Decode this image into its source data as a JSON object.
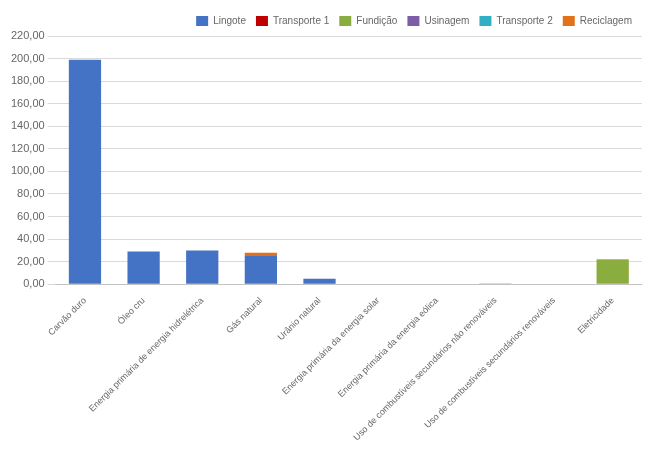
{
  "chart_data": {
    "type": "bar",
    "stacked": true,
    "categories": [
      "Carvão duro",
      "Óleo cru",
      "Energia primária de energia hidrelétrica",
      "Gás natural",
      "Urânio natural",
      "Energia primária da energia solar",
      "Energia primária da energia eólica",
      "Uso de combustíveis secundários não renováveis",
      "Uso de combustíveis secundários renováveis",
      "Eletricidade"
    ],
    "series": [
      {
        "name": "Lingote",
        "color": "#4472C4",
        "values": [
          199.0,
          29.0,
          30.0,
          25.0,
          5.0,
          0.5,
          0.5,
          0.8,
          0.0,
          0.0
        ]
      },
      {
        "name": "Transporte 1",
        "color": "#C00000",
        "values": [
          0.0,
          0.0,
          0.0,
          0.0,
          0.0,
          0.0,
          0.0,
          0.0,
          0.0,
          0.0
        ]
      },
      {
        "name": "Fundição",
        "color": "#8BAD3F",
        "values": [
          0.0,
          0.0,
          0.0,
          0.0,
          0.0,
          0.0,
          0.0,
          0.0,
          0.0,
          21.5
        ]
      },
      {
        "name": "Usinagem",
        "color": "#7B5EA7",
        "values": [
          0.0,
          0.0,
          0.0,
          0.0,
          0.0,
          0.0,
          0.0,
          0.0,
          0.0,
          0.5
        ]
      },
      {
        "name": "Transporte 2",
        "color": "#31B0C5",
        "values": [
          0.0,
          0.0,
          0.0,
          0.0,
          0.0,
          0.0,
          0.0,
          0.0,
          0.0,
          0.0
        ]
      },
      {
        "name": "Reciclagem",
        "color": "#E2711A",
        "values": [
          0.0,
          0.0,
          0.0,
          3.0,
          0.0,
          0.0,
          0.0,
          0.0,
          0.0,
          0.0
        ]
      }
    ],
    "ylim": [
      0,
      220
    ],
    "yticks": [
      {
        "value": 0,
        "label": "0,00"
      },
      {
        "value": 20,
        "label": "20,00"
      },
      {
        "value": 40,
        "label": "40,00"
      },
      {
        "value": 60,
        "label": "60,00"
      },
      {
        "value": 80,
        "label": "80,00"
      },
      {
        "value": 100,
        "label": "100,00"
      },
      {
        "value": 120,
        "label": "120,00"
      },
      {
        "value": 140,
        "label": "140,00"
      },
      {
        "value": 160,
        "label": "160,00"
      },
      {
        "value": 180,
        "label": "180,00"
      },
      {
        "value": 200,
        "label": "200,00"
      },
      {
        "value": 220,
        "label": "220,00"
      }
    ],
    "grid": true,
    "legend": "upper right"
  }
}
